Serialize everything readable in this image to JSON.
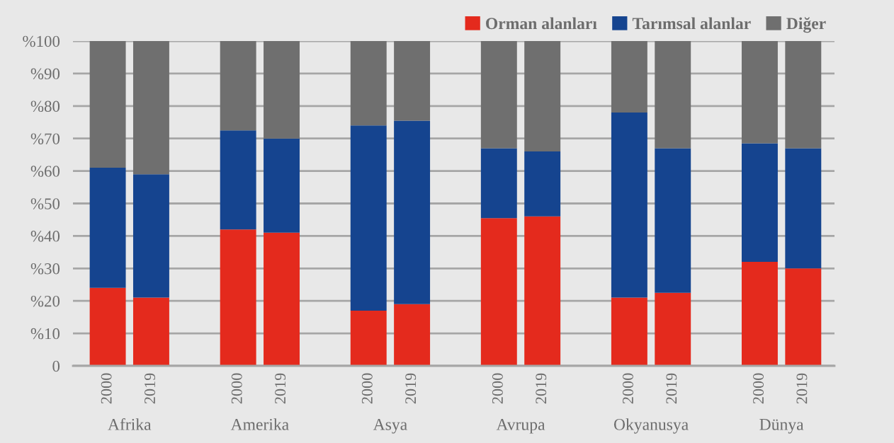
{
  "chart_data": {
    "type": "bar",
    "stacked": true,
    "categories": [
      "2000",
      "2019",
      null,
      "2000",
      "2019",
      null,
      "2000",
      "2019",
      null,
      "2000",
      "2019",
      null,
      "2000",
      "2019",
      null,
      "2000",
      "2019"
    ],
    "series": [
      {
        "name": "Orman alanları",
        "color": "#e42a1d",
        "values": [
          24,
          21,
          null,
          42,
          41,
          null,
          17,
          19,
          null,
          45.5,
          46,
          null,
          21,
          22.5,
          null,
          32,
          30
        ]
      },
      {
        "name": "Tarımsal alanlar",
        "color": "#15448f",
        "values": [
          37,
          38,
          null,
          30.5,
          29,
          null,
          57,
          56.5,
          null,
          21.5,
          20,
          null,
          57,
          44.5,
          null,
          36.5,
          37
        ]
      },
      {
        "name": "Diğer",
        "color": "#6f6f6f",
        "values": [
          39,
          41,
          null,
          27.5,
          30,
          null,
          26,
          24.5,
          null,
          33,
          34,
          null,
          22,
          33,
          null,
          31.5,
          33
        ]
      }
    ],
    "ylim": [
      0,
      100
    ],
    "yticks": [
      0,
      {
        "value": 10,
        "label": "%10"
      },
      {
        "value": 20,
        "label": "%20"
      },
      {
        "value": 30,
        "label": "%30"
      },
      {
        "value": 40,
        "label": "%40"
      },
      {
        "value": 50,
        "label": "%50"
      },
      {
        "value": 60,
        "label": "%60"
      },
      {
        "value": 70,
        "label": "%70"
      },
      {
        "value": 80,
        "label": "%80"
      },
      {
        "value": 90,
        "label": "%90"
      },
      {
        "value": 100,
        "label": "%100"
      }
    ],
    "grid": "y",
    "legend": "top right",
    "annotations": [
      "Afrika",
      "Amerika",
      "Asya",
      "Avrupa",
      "Okyanusya",
      "Dünya"
    ]
  }
}
